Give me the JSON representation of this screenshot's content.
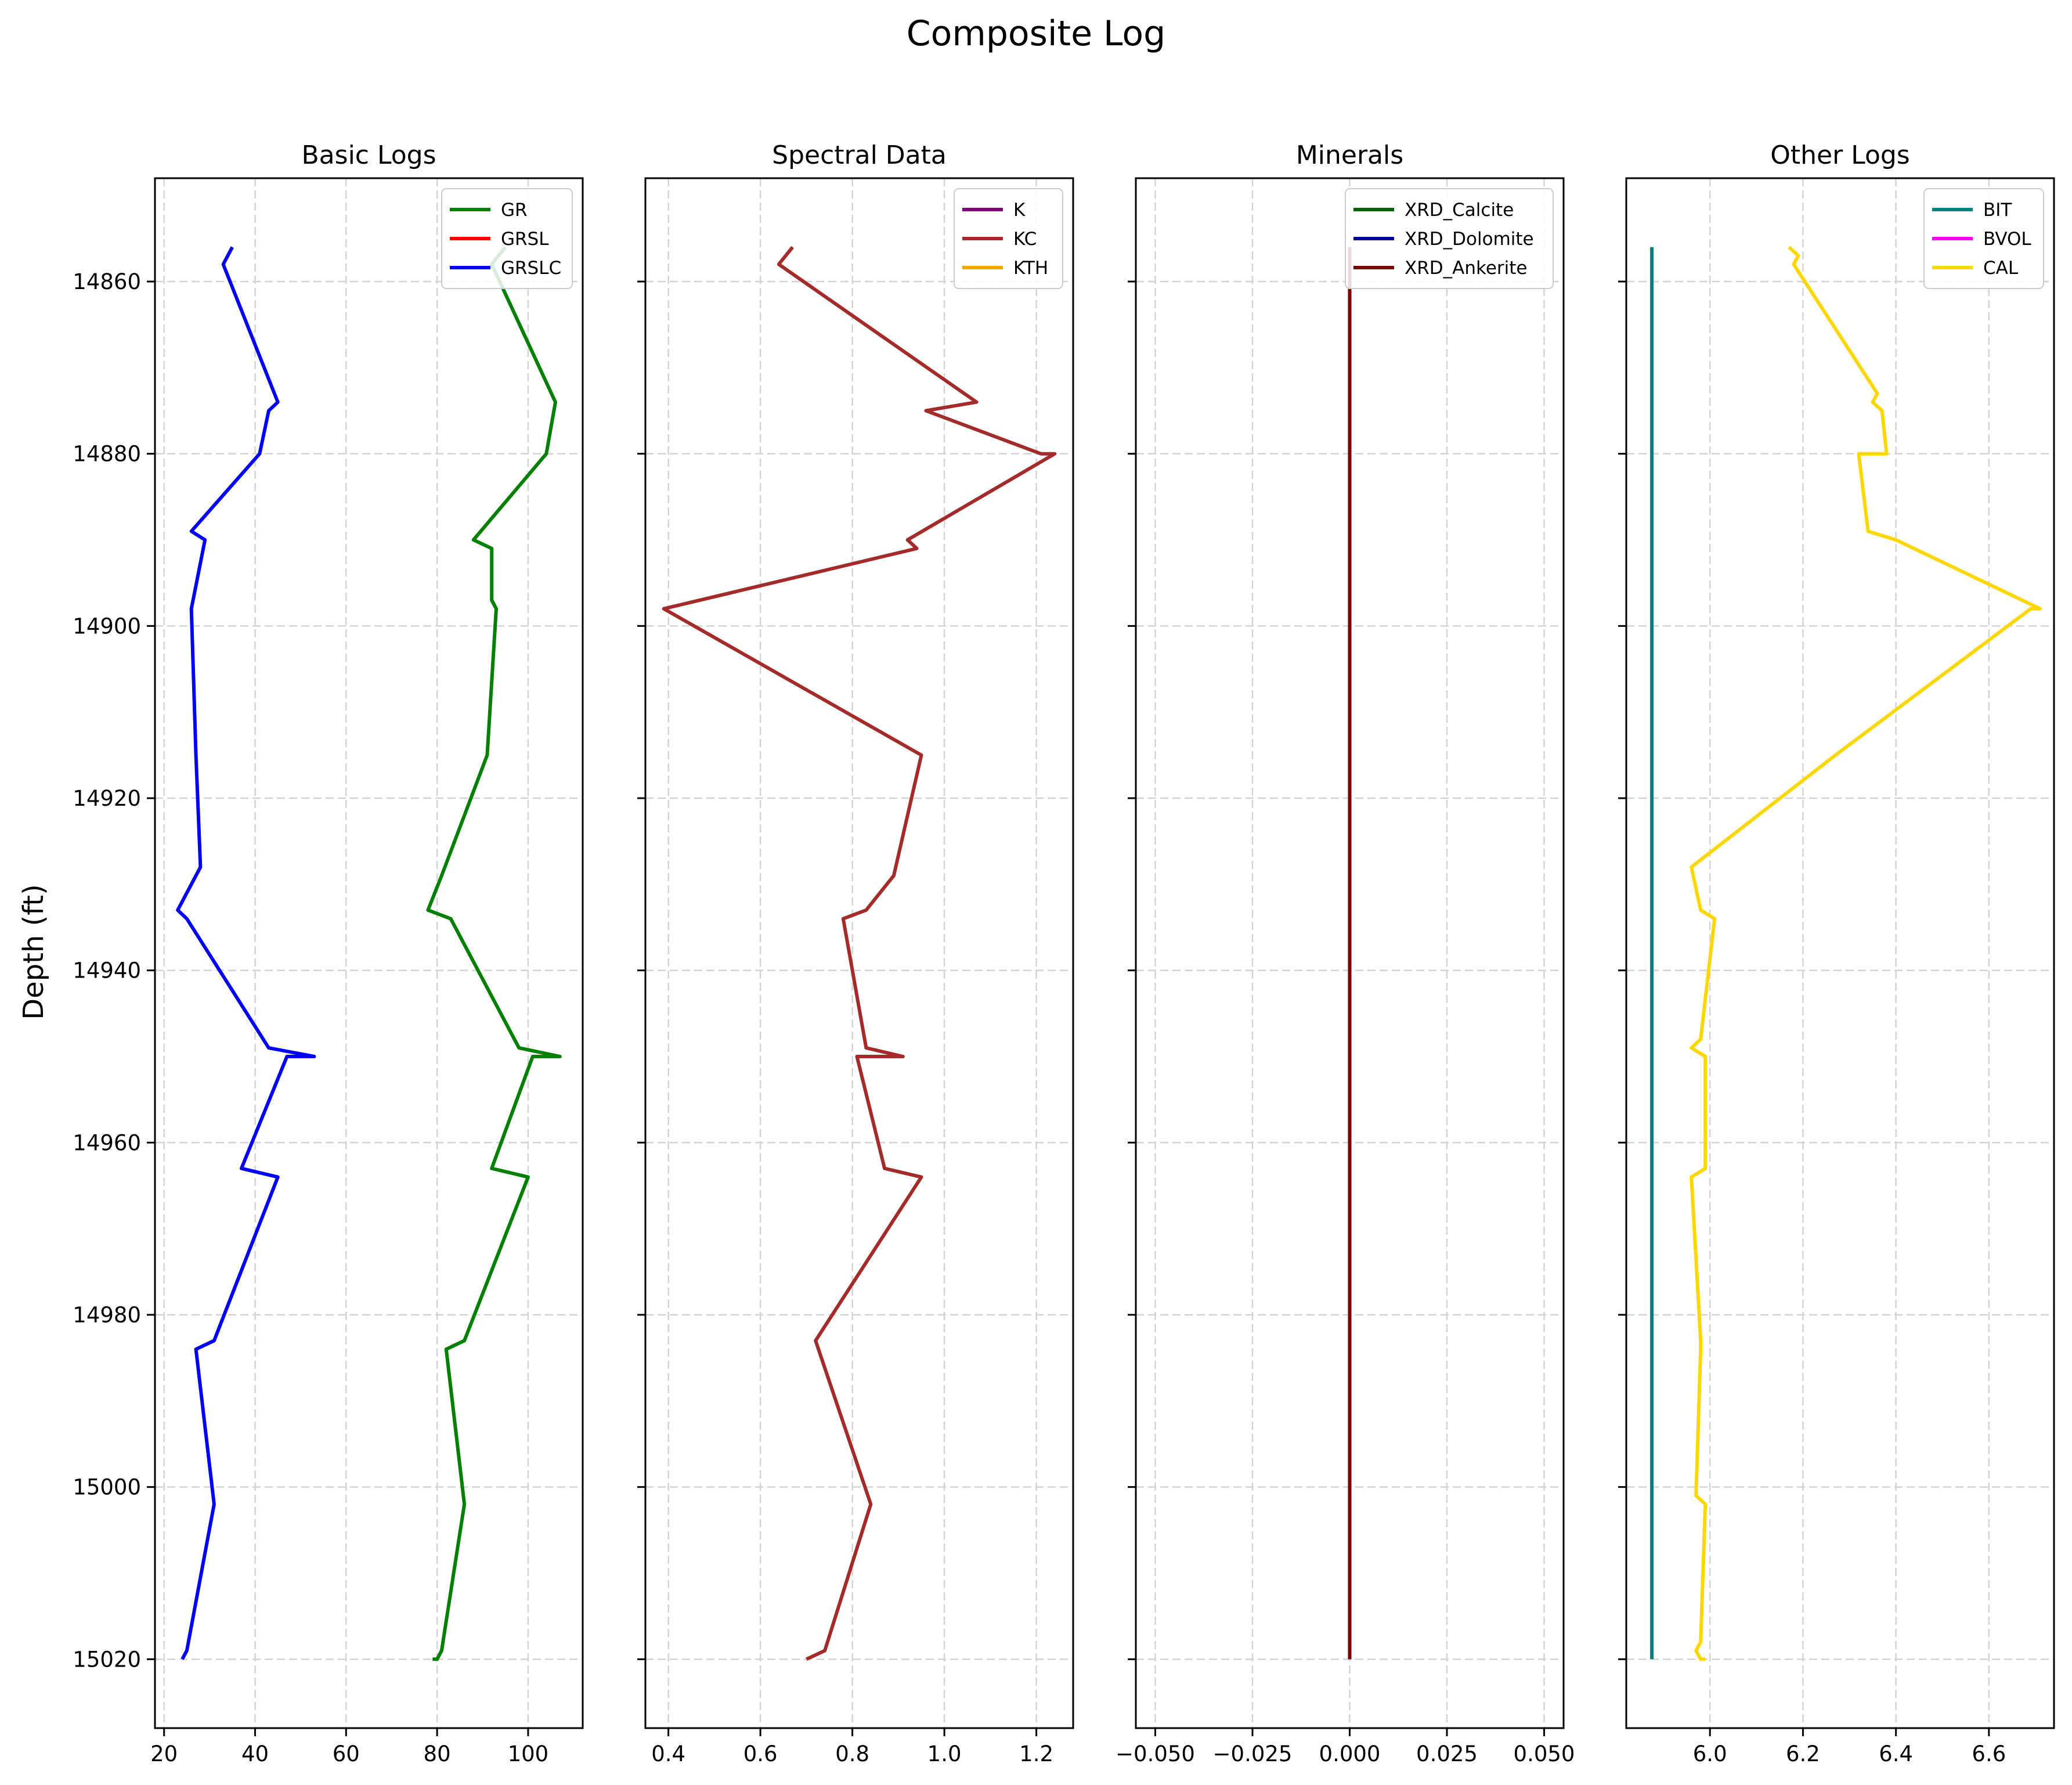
{
  "title": "Composite Log",
  "ylabel": "Depth (ft)",
  "colors": {
    "GR": "#008000",
    "GRSL": "#ff0000",
    "GRSLC": "#0000ff",
    "K": "#800080",
    "KC": "#a52a2a",
    "KTH": "#ffa500",
    "XRD_Calcite": "#006400",
    "XRD_Dolomite": "#00008b",
    "XRD_Ankerite": "#800000",
    "BIT": "#008080",
    "BVOL": "#ff00ff",
    "CAL": "#ffd700"
  },
  "chart_data": [
    {
      "type": "line",
      "title": "Basic Logs",
      "xlim": [
        18,
        112
      ],
      "ylim": [
        15028,
        14848
      ],
      "xticks": [
        20,
        40,
        60,
        80,
        100
      ],
      "xtick_labels": [
        "20",
        "40",
        "60",
        "80",
        "100"
      ],
      "yticks": [
        14860,
        14880,
        14900,
        14920,
        14940,
        14960,
        14980,
        15000,
        15020
      ],
      "ytick_labels": [
        "14860",
        "14880",
        "14900",
        "14920",
        "14940",
        "14960",
        "14980",
        "15000",
        "15020"
      ],
      "grid": true,
      "legend": "top-right",
      "series": [
        {
          "name": "GR",
          "x": [
            95,
            92,
            106,
            104,
            88,
            92,
            92,
            93,
            91,
            81,
            78,
            83,
            98,
            107,
            101,
            92,
            100,
            86,
            82,
            86,
            81,
            80,
            79
          ],
          "y": [
            14856,
            14858,
            14874,
            14880,
            14890,
            14891,
            14897,
            14898,
            14915,
            14929,
            14933,
            14934,
            14949,
            14950,
            14950,
            14963,
            14964,
            14983,
            14984,
            15002,
            15019,
            15020,
            15020
          ]
        },
        {
          "name": "GRSL",
          "x": [],
          "y": []
        },
        {
          "name": "GRSLC",
          "x": [
            35,
            33,
            45,
            43,
            41,
            26,
            29,
            26,
            27,
            28,
            23,
            25,
            43,
            53,
            47,
            37,
            45,
            31,
            27,
            31,
            25,
            24
          ],
          "y": [
            14856,
            14858,
            14874,
            14875,
            14880,
            14889,
            14890,
            14898,
            14915,
            14928,
            14933,
            14934,
            14949,
            14950,
            14950,
            14963,
            14964,
            14983,
            14984,
            15002,
            15019,
            15020
          ]
        }
      ]
    },
    {
      "type": "line",
      "title": "Spectral Data",
      "xlim": [
        0.35,
        1.28
      ],
      "ylim": [
        15028,
        14848
      ],
      "xticks": [
        0.4,
        0.6,
        0.8,
        1.0,
        1.2
      ],
      "xtick_labels": [
        "0.4",
        "0.6",
        "0.8",
        "1.0",
        "1.2"
      ],
      "yticks": [
        14860,
        14880,
        14900,
        14920,
        14940,
        14960,
        14980,
        15000,
        15020
      ],
      "ytick_labels": [],
      "grid": true,
      "legend": "top-right",
      "series": [
        {
          "name": "K",
          "x": [],
          "y": []
        },
        {
          "name": "KC",
          "x": [
            0.67,
            0.64,
            1.07,
            0.96,
            1.21,
            1.24,
            0.92,
            0.94,
            0.39,
            0.95,
            0.89,
            0.83,
            0.78,
            0.83,
            0.91,
            0.81,
            0.87,
            0.95,
            0.72,
            0.84,
            0.74,
            0.7
          ],
          "y": [
            14856,
            14858,
            14874,
            14875,
            14880,
            14880,
            14890,
            14891,
            14898,
            14915,
            14929,
            14933,
            14934,
            14949,
            14950,
            14950,
            14963,
            14964,
            14983,
            15002,
            15019,
            15020
          ]
        },
        {
          "name": "KTH",
          "x": [],
          "y": []
        }
      ]
    },
    {
      "type": "line",
      "title": "Minerals",
      "xlim": [
        -0.055,
        0.055
      ],
      "ylim": [
        15028,
        14848
      ],
      "xticks": [
        -0.05,
        -0.025,
        0.0,
        0.025,
        0.05
      ],
      "xtick_labels": [
        "−0.050",
        "−0.025",
        "0.000",
        "0.025",
        "0.050"
      ],
      "yticks": [
        14860,
        14880,
        14900,
        14920,
        14940,
        14960,
        14980,
        15000,
        15020
      ],
      "ytick_labels": [],
      "grid": true,
      "legend": "top-right",
      "series": [
        {
          "name": "XRD_Calcite",
          "x": [
            0,
            0
          ],
          "y": [
            14856,
            15020
          ]
        },
        {
          "name": "XRD_Dolomite",
          "x": [
            0,
            0
          ],
          "y": [
            14856,
            15020
          ]
        },
        {
          "name": "XRD_Ankerite",
          "x": [
            0,
            0
          ],
          "y": [
            14856,
            15020
          ]
        }
      ]
    },
    {
      "type": "line",
      "title": "Other Logs",
      "xlim": [
        5.82,
        6.74
      ],
      "ylim": [
        15028,
        14848
      ],
      "xticks": [
        6.0,
        6.2,
        6.4,
        6.6
      ],
      "xtick_labels": [
        "6.0",
        "6.2",
        "6.4",
        "6.6"
      ],
      "yticks": [
        14860,
        14880,
        14900,
        14920,
        14940,
        14960,
        14980,
        15000,
        15020
      ],
      "ytick_labels": [],
      "grid": true,
      "legend": "top-right",
      "series": [
        {
          "name": "BIT",
          "x": [
            5.875,
            5.875
          ],
          "y": [
            14856,
            15020
          ]
        },
        {
          "name": "BVOL",
          "x": [],
          "y": [],
          "}": ""
        },
        {
          "name": "CAL",
          "x": [
            6.17,
            6.19,
            6.18,
            6.36,
            6.35,
            6.37,
            6.38,
            6.32,
            6.34,
            6.4,
            6.71,
            6.69,
            6.27,
            5.96,
            5.98,
            6.01,
            5.98,
            5.96,
            5.99,
            5.99,
            5.96,
            5.98,
            5.98,
            5.97,
            5.99,
            5.98,
            5.97,
            5.98,
            5.99
          ],
          "y": [
            14856,
            14857,
            14858,
            14873,
            14874,
            14875,
            14880,
            14880,
            14889,
            14890,
            14898,
            14898,
            14915,
            14928,
            14933,
            14934,
            14948,
            14949,
            14950,
            14963,
            14964,
            14983,
            14984,
            15001,
            15002,
            15018,
            15019,
            15020,
            15020
          ]
        }
      ]
    }
  ]
}
